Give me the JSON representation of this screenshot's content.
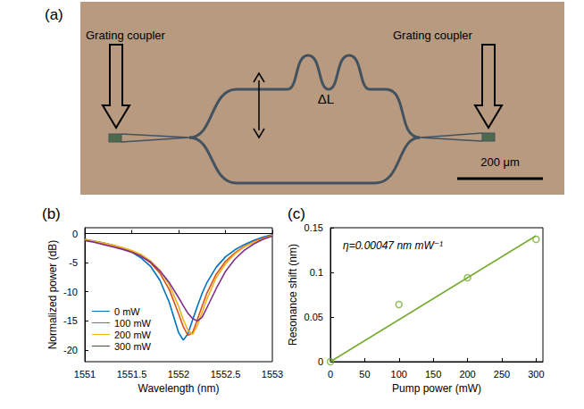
{
  "diagram": {
    "panel": "(a)",
    "left_coupler": "Grating coupler",
    "right_coupler": "Grating coupler",
    "arm_difference": "ΔL",
    "scale_bar": "200 μm"
  },
  "chart_data": [
    {
      "panel": "(b)",
      "type": "line",
      "x_label": "Wavelength (nm)",
      "y_label": "Normalized power (dB)",
      "x": [
        1551.0,
        1551.1,
        1551.2,
        1551.3,
        1551.4,
        1551.5,
        1551.6,
        1551.7,
        1551.8,
        1551.9,
        1552.0,
        1552.05,
        1552.1,
        1552.15,
        1552.2,
        1552.25,
        1552.3,
        1552.4,
        1552.5,
        1552.6,
        1552.7,
        1552.8,
        1552.9,
        1553.0
      ],
      "series": [
        {
          "name": "0 mW",
          "color": "#0072BD",
          "values": [
            -1.0,
            -1.3,
            -1.6,
            -2.0,
            -2.5,
            -3.2,
            -4.2,
            -5.6,
            -8.0,
            -11.8,
            -17.0,
            -18.3,
            -17.2,
            -14.8,
            -12.5,
            -10.3,
            -8.5,
            -5.8,
            -4.0,
            -2.8,
            -1.9,
            -1.2,
            -0.6,
            -0.2
          ]
        },
        {
          "name": "100 mW",
          "color": "#D95319",
          "values": [
            -1.1,
            -1.4,
            -1.7,
            -2.1,
            -2.5,
            -3.0,
            -3.8,
            -5.0,
            -6.8,
            -9.6,
            -13.8,
            -16.0,
            -17.5,
            -17.0,
            -14.8,
            -12.5,
            -10.3,
            -7.0,
            -4.8,
            -3.3,
            -2.2,
            -1.4,
            -0.8,
            -0.3
          ]
        },
        {
          "name": "200 mW",
          "color": "#EDB120",
          "values": [
            -1.0,
            -1.3,
            -1.6,
            -2.0,
            -2.4,
            -2.9,
            -3.6,
            -4.7,
            -6.3,
            -8.8,
            -12.5,
            -14.8,
            -16.6,
            -17.3,
            -15.8,
            -13.6,
            -11.3,
            -7.6,
            -5.2,
            -3.5,
            -2.3,
            -1.5,
            -0.9,
            -0.3
          ]
        },
        {
          "name": "300 mW",
          "color": "#7E2F8E",
          "values": [
            -1.2,
            -1.5,
            -1.9,
            -2.3,
            -2.7,
            -3.2,
            -3.9,
            -4.9,
            -6.4,
            -8.4,
            -11.0,
            -12.4,
            -13.7,
            -14.6,
            -15.0,
            -14.4,
            -12.8,
            -9.5,
            -6.5,
            -4.4,
            -2.9,
            -1.8,
            -1.0,
            -0.4
          ]
        }
      ],
      "xlim": [
        1551,
        1553
      ],
      "xticks": [
        1551,
        1551.5,
        1552,
        1552.5,
        1553
      ],
      "ylim": [
        -22,
        1
      ],
      "yticks": [
        -20,
        -15,
        -10,
        -5,
        0
      ],
      "legend": "lower left",
      "grid": false
    },
    {
      "panel": "(c)",
      "type": "scatter",
      "x_label": "Pump power (mW)",
      "y_label": "Resonance shift (nm)",
      "annotation": "η=0.00047 nm mW⁻¹",
      "series": [
        {
          "type": "scatter",
          "color": "#77AC30",
          "marker": "circle",
          "x": [
            0,
            100,
            200,
            300
          ],
          "values": [
            0,
            0.064,
            0.094,
            0.137
          ]
        },
        {
          "type": "line",
          "color": "#77AC30",
          "line_style": "solid",
          "x": [
            0,
            300
          ],
          "values": [
            0,
            0.141
          ]
        }
      ],
      "xlim": [
        0,
        310
      ],
      "xticks": [
        0,
        50,
        100,
        150,
        200,
        250,
        300
      ],
      "ylim": [
        0,
        0.15
      ],
      "yticks": [
        0,
        0.05,
        0.1,
        0.15
      ],
      "grid": false
    }
  ]
}
